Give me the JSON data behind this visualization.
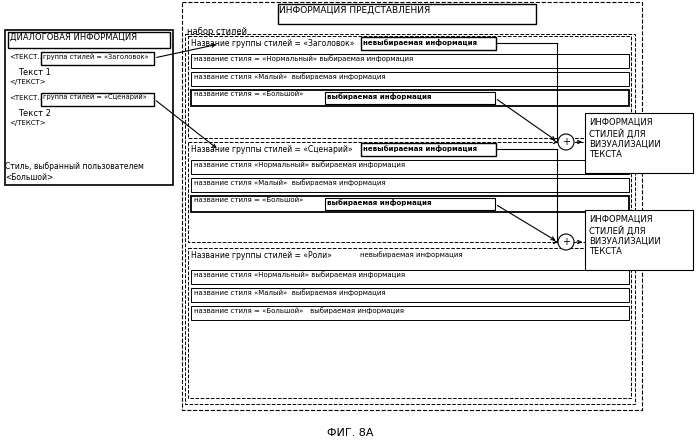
{
  "bg_color": "#ffffff",
  "fig_width": 7.0,
  "fig_height": 4.41,
  "dpi": 100,
  "caption": "ФИГ. 8А",
  "title_box_text": "ИНФОРМАЦИЯ ПРЕДСТАВЛЕНИЯ",
  "nabor_text": "набор стилей",
  "dialog_title": "ДИАЛОГОВАЯ ИНФОРМАЦИЯ",
  "tekst1_prefix": "<ТЕКСТ..",
  "grp_zagolovok": "группа стилей = «Заголовок»",
  "tekst1": "Текст 1",
  "close_tekst": "</ТЕКСТ>",
  "tekst2_prefix": "<ТЕКСТ..",
  "grp_scenariy": "группа стилей = «Сценарий»",
  "tekst2": "Текст 2",
  "style_user1": "Стиль, выбранный пользователем",
  "style_user2": "<Большой>",
  "g1_header": "Название группы стилей = «Заголовок»",
  "g1_nevyb": "невыбираемая информация",
  "g1_r2": "название стиля = «Нормальный» выбираемая информация",
  "g1_r3": "название стиля «Малый»  выбираемая информация",
  "g1_r4a": "название стиля = «Большой»",
  "g1_r4b": "выбираемая информация",
  "g2_header": "Название группы стилей = «Сценарий»",
  "g2_nevyb": "невыбираемая информация",
  "g2_r2": "название стиля «Нормальный» выбираемая информация",
  "g2_r3": "название стиля «Малый»  выбираемая информация",
  "g2_r4a": "название стиля = «Большой»",
  "g2_r4b": "выбираемая информация",
  "g3_header": "Название группы стилей = «Роли»",
  "g3_nevyb": "невыбираемая информация",
  "g3_r2": "название стиля «Нормальный» выбираемая информация",
  "g3_r3": "название стиля «Малый»  выбираемая информация",
  "g3_r4": "название стиля = «Большой»   выбираемая информация",
  "out_box1": "ИНФОРМАЦИЯ\nСТИЛЕЙ ДЛЯ\nВИЗУАЛИЗАЦИИ\nТЕКСТА",
  "out_box2": "ИНФОРМАЦИЯ\nСТИЛЕЙ ДЛЯ\nВИЗУАЛИЗАЦИИ\nТЕКСТА"
}
